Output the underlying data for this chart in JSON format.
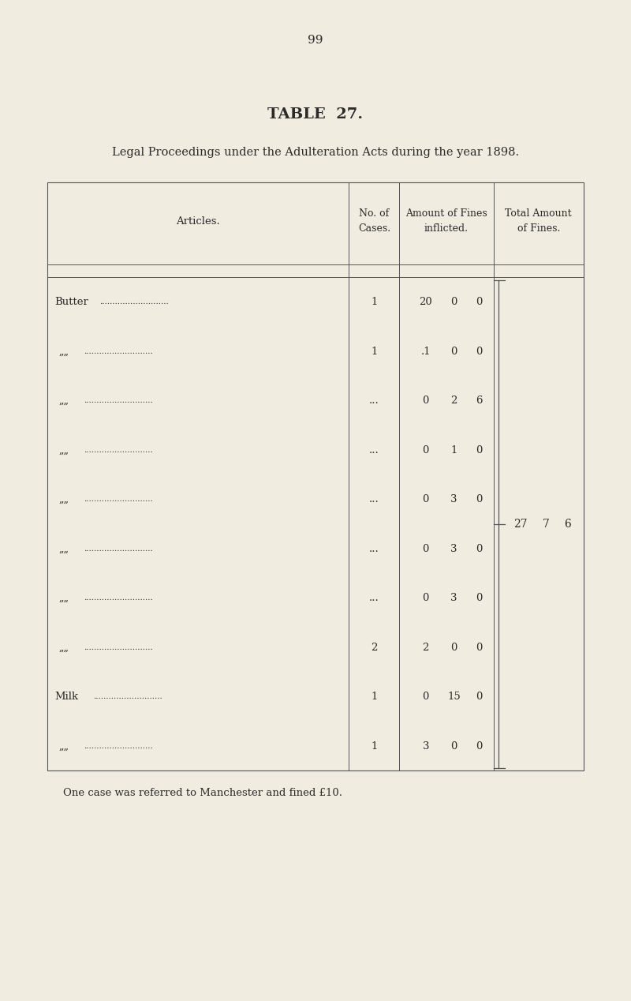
{
  "page_number": "99",
  "title": "TABLE  27.",
  "subtitle": "Legal Proceedings under the Adulteration Acts during the year 1898.",
  "bg_color": "#f0ece0",
  "text_color": "#2a2a2a",
  "footnote": "One case was referred to Manchester and fined £10.",
  "rows": [
    {
      "article_label": "Butter",
      "cases": "1",
      "f1": "20",
      "f2": "0",
      "f3": "0"
    },
    {
      "article_label": "„",
      "cases": "1",
      "f1": ".1",
      "f2": "0",
      "f3": "0"
    },
    {
      "article_label": "„",
      "cases": "...",
      "f1": "0",
      "f2": "2",
      "f3": "6"
    },
    {
      "article_label": "„",
      "cases": "...",
      "f1": "0",
      "f2": "1",
      "f3": "0"
    },
    {
      "article_label": "„",
      "cases": "...",
      "f1": "0",
      "f2": "3",
      "f3": "0"
    },
    {
      "article_label": "„",
      "cases": "...",
      "f1": "0",
      "f2": "3",
      "f3": "0"
    },
    {
      "article_label": "„",
      "cases": "...",
      "f1": "0",
      "f2": "3",
      "f3": "0"
    },
    {
      "article_label": "„",
      "cases": "2",
      "f1": "2",
      "f2": "0",
      "f3": "0"
    },
    {
      "article_label": "Milk",
      "cases": "1",
      "f1": "0",
      "f2": "15",
      "f3": "0"
    },
    {
      "article_label": "„",
      "cases": "1",
      "f1": "3",
      "f2": "0",
      "f3": "0"
    }
  ],
  "total_f1": "27",
  "total_f2": "7",
  "total_f3": "6"
}
